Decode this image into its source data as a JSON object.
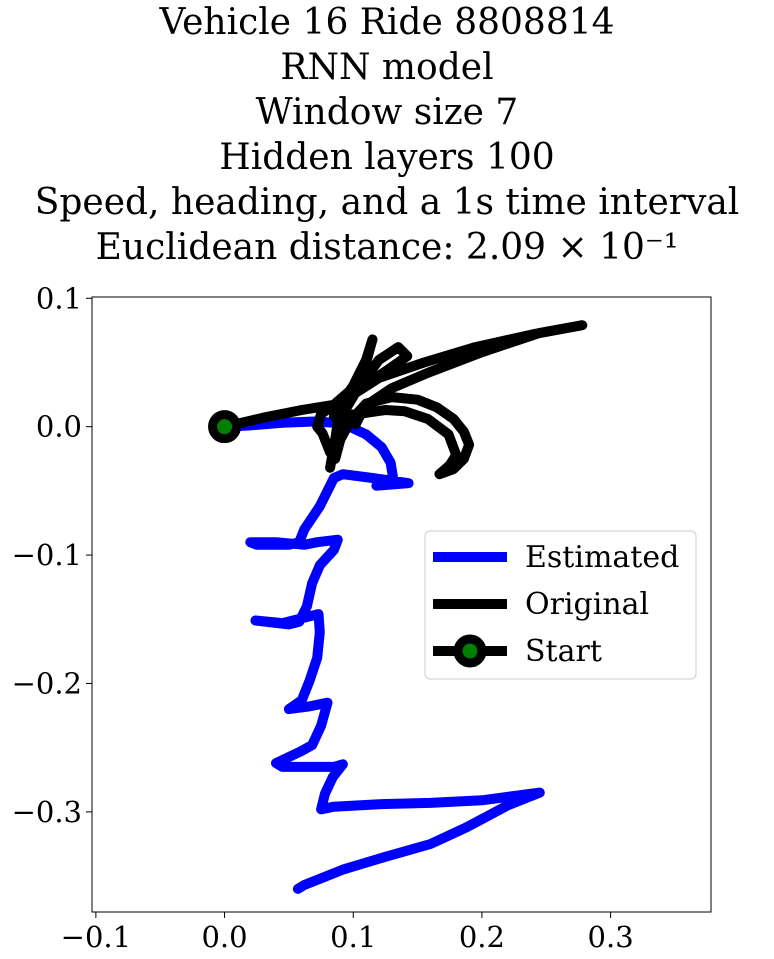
{
  "title_lines": [
    "Vehicle 16 Ride 8808814",
    "RNN model",
    "Window size 7",
    "Hidden layers 100",
    "Speed, heading, and a 1s time interval",
    "Euclidean distance: 2.09 × 10⁻¹"
  ],
  "chart_data": {
    "type": "line",
    "title": "Vehicle 16 Ride 8808814 / RNN model / Window size 7 / Hidden layers 100 / Speed, heading, and a 1s time interval / Euclidean distance: 2.09 × 10⁻¹",
    "xlabel": "",
    "ylabel": "",
    "xlim": [
      -0.103,
      0.378
    ],
    "ylim": [
      -0.378,
      0.101
    ],
    "xticks": [
      -0.1,
      0.0,
      0.1,
      0.2,
      0.3
    ],
    "xtick_labels": [
      "−0.1",
      "0.0",
      "0.1",
      "0.2",
      "0.3"
    ],
    "yticks": [
      0.1,
      0.0,
      -0.1,
      -0.2,
      -0.3
    ],
    "ytick_labels": [
      "0.1",
      "0.0",
      "−0.1",
      "−0.2",
      "−0.3"
    ],
    "grid": false,
    "legend_position": "center-right",
    "series": [
      {
        "name": "Estimated",
        "color": "#0000ff",
        "points": [
          [
            0.0,
            0.0
          ],
          [
            0.02,
            0.001
          ],
          [
            0.045,
            0.003
          ],
          [
            0.07,
            0.004
          ],
          [
            0.085,
            0.003
          ],
          [
            0.095,
            0.001
          ],
          [
            0.11,
            -0.006
          ],
          [
            0.122,
            -0.016
          ],
          [
            0.129,
            -0.028
          ],
          [
            0.131,
            -0.04
          ],
          [
            0.127,
            -0.045
          ],
          [
            0.118,
            -0.046
          ],
          [
            0.143,
            -0.044
          ],
          [
            0.115,
            -0.04
          ],
          [
            0.092,
            -0.037
          ],
          [
            0.085,
            -0.04
          ],
          [
            0.08,
            -0.05
          ],
          [
            0.074,
            -0.062
          ],
          [
            0.062,
            -0.08
          ],
          [
            0.058,
            -0.09
          ],
          [
            0.05,
            -0.092
          ],
          [
            0.025,
            -0.092
          ],
          [
            0.02,
            -0.09
          ],
          [
            0.04,
            -0.09
          ],
          [
            0.062,
            -0.092
          ],
          [
            0.072,
            -0.09
          ],
          [
            0.088,
            -0.088
          ],
          [
            0.085,
            -0.096
          ],
          [
            0.074,
            -0.108
          ],
          [
            0.068,
            -0.122
          ],
          [
            0.064,
            -0.14
          ],
          [
            0.058,
            -0.152
          ],
          [
            0.05,
            -0.154
          ],
          [
            0.024,
            -0.151
          ],
          [
            0.045,
            -0.153
          ],
          [
            0.065,
            -0.148
          ],
          [
            0.073,
            -0.146
          ],
          [
            0.074,
            -0.16
          ],
          [
            0.072,
            -0.18
          ],
          [
            0.066,
            -0.198
          ],
          [
            0.06,
            -0.213
          ],
          [
            0.05,
            -0.22
          ],
          [
            0.065,
            -0.218
          ],
          [
            0.08,
            -0.215
          ],
          [
            0.075,
            -0.233
          ],
          [
            0.068,
            -0.248
          ],
          [
            0.059,
            -0.253
          ],
          [
            0.04,
            -0.262
          ],
          [
            0.045,
            -0.265
          ],
          [
            0.085,
            -0.265
          ],
          [
            0.092,
            -0.263
          ],
          [
            0.084,
            -0.273
          ],
          [
            0.078,
            -0.286
          ],
          [
            0.075,
            -0.298
          ],
          [
            0.085,
            -0.296
          ],
          [
            0.12,
            -0.294
          ],
          [
            0.16,
            -0.293
          ],
          [
            0.2,
            -0.291
          ],
          [
            0.245,
            -0.285
          ],
          [
            0.22,
            -0.295
          ],
          [
            0.188,
            -0.312
          ],
          [
            0.16,
            -0.325
          ],
          [
            0.125,
            -0.335
          ],
          [
            0.092,
            -0.345
          ],
          [
            0.062,
            -0.357
          ],
          [
            0.057,
            -0.36
          ]
        ]
      },
      {
        "name": "Original",
        "color": "#000000",
        "points": [
          [
            0.0,
            0.0
          ],
          [
            0.03,
            0.007
          ],
          [
            0.06,
            0.013
          ],
          [
            0.085,
            0.017
          ],
          [
            0.102,
            0.032
          ],
          [
            0.11,
            0.05
          ],
          [
            0.115,
            0.068
          ],
          [
            0.11,
            0.052
          ],
          [
            0.1,
            0.032
          ],
          [
            0.09,
            0.017
          ],
          [
            0.086,
            -0.01
          ],
          [
            0.082,
            -0.032
          ],
          [
            0.085,
            -0.015
          ],
          [
            0.092,
            0.01
          ],
          [
            0.105,
            0.032
          ],
          [
            0.12,
            0.052
          ],
          [
            0.135,
            0.062
          ],
          [
            0.142,
            0.055
          ],
          [
            0.125,
            0.043
          ],
          [
            0.108,
            0.032
          ],
          [
            0.09,
            0.02
          ],
          [
            0.075,
            0.01
          ],
          [
            0.072,
            0.0
          ],
          [
            0.076,
            -0.005
          ],
          [
            0.082,
            -0.02
          ],
          [
            0.086,
            -0.025
          ],
          [
            0.09,
            -0.01
          ],
          [
            0.098,
            0.005
          ],
          [
            0.11,
            0.018
          ],
          [
            0.13,
            0.023
          ],
          [
            0.15,
            0.021
          ],
          [
            0.165,
            0.015
          ],
          [
            0.178,
            0.006
          ],
          [
            0.186,
            -0.004
          ],
          [
            0.19,
            -0.014
          ],
          [
            0.186,
            -0.025
          ],
          [
            0.178,
            -0.033
          ],
          [
            0.167,
            -0.037
          ],
          [
            0.175,
            -0.03
          ],
          [
            0.18,
            -0.022
          ],
          [
            0.174,
            -0.006
          ],
          [
            0.158,
            0.006
          ],
          [
            0.14,
            0.012
          ],
          [
            0.125,
            0.013
          ],
          [
            0.105,
            0.01
          ],
          [
            0.085,
            0.008
          ],
          [
            0.092,
            0.02
          ],
          [
            0.12,
            0.038
          ],
          [
            0.155,
            0.05
          ],
          [
            0.195,
            0.062
          ],
          [
            0.24,
            0.072
          ],
          [
            0.278,
            0.079
          ],
          [
            0.245,
            0.073
          ],
          [
            0.2,
            0.058
          ],
          [
            0.158,
            0.042
          ],
          [
            0.13,
            0.03
          ],
          [
            0.112,
            0.018
          ],
          [
            0.105,
            0.008
          ],
          [
            0.102,
            0.002
          ]
        ]
      }
    ],
    "start_point": {
      "name": "Start",
      "x": 0.0,
      "y": 0.0,
      "marker_face": "#008000",
      "marker_edge": "#000000"
    },
    "legend": [
      "Estimated",
      "Original",
      "Start"
    ]
  }
}
